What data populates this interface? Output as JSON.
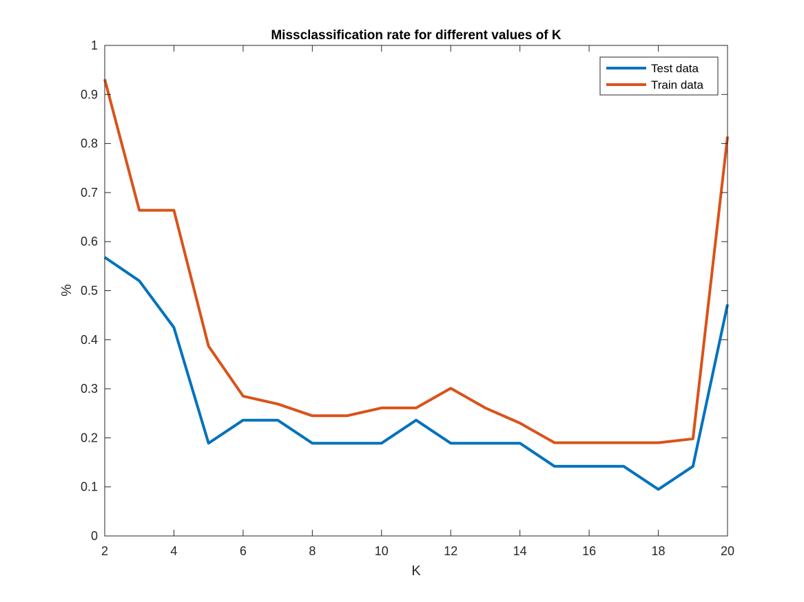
{
  "chart_data": {
    "type": "line",
    "title": "Missclassification rate for different values of K",
    "xlabel": "K",
    "ylabel": "%",
    "xlim": [
      2,
      20
    ],
    "ylim": [
      0,
      1
    ],
    "xticks": [
      "2",
      "4",
      "6",
      "8",
      "10",
      "12",
      "14",
      "16",
      "18",
      "20"
    ],
    "yticks": [
      "0",
      "0.1",
      "0.2",
      "0.3",
      "0.4",
      "0.5",
      "0.6",
      "0.7",
      "0.8",
      "0.9",
      "1"
    ],
    "grid": false,
    "legend_position": "top-right",
    "x": [
      2,
      3,
      4,
      5,
      6,
      7,
      8,
      9,
      10,
      11,
      12,
      13,
      14,
      15,
      16,
      17,
      18,
      19,
      20
    ],
    "series": [
      {
        "name": "Test data",
        "color": "#0072BD",
        "values": [
          0.568,
          0.52,
          0.425,
          0.189,
          0.236,
          0.236,
          0.189,
          0.189,
          0.189,
          0.236,
          0.189,
          0.189,
          0.189,
          0.142,
          0.142,
          0.142,
          0.095,
          0.142,
          0.472
        ]
      },
      {
        "name": "Train data",
        "color": "#D95319",
        "values": [
          0.931,
          0.664,
          0.664,
          0.387,
          0.285,
          0.269,
          0.245,
          0.245,
          0.261,
          0.261,
          0.301,
          0.261,
          0.23,
          0.19,
          0.19,
          0.19,
          0.19,
          0.198,
          0.814
        ]
      }
    ]
  }
}
